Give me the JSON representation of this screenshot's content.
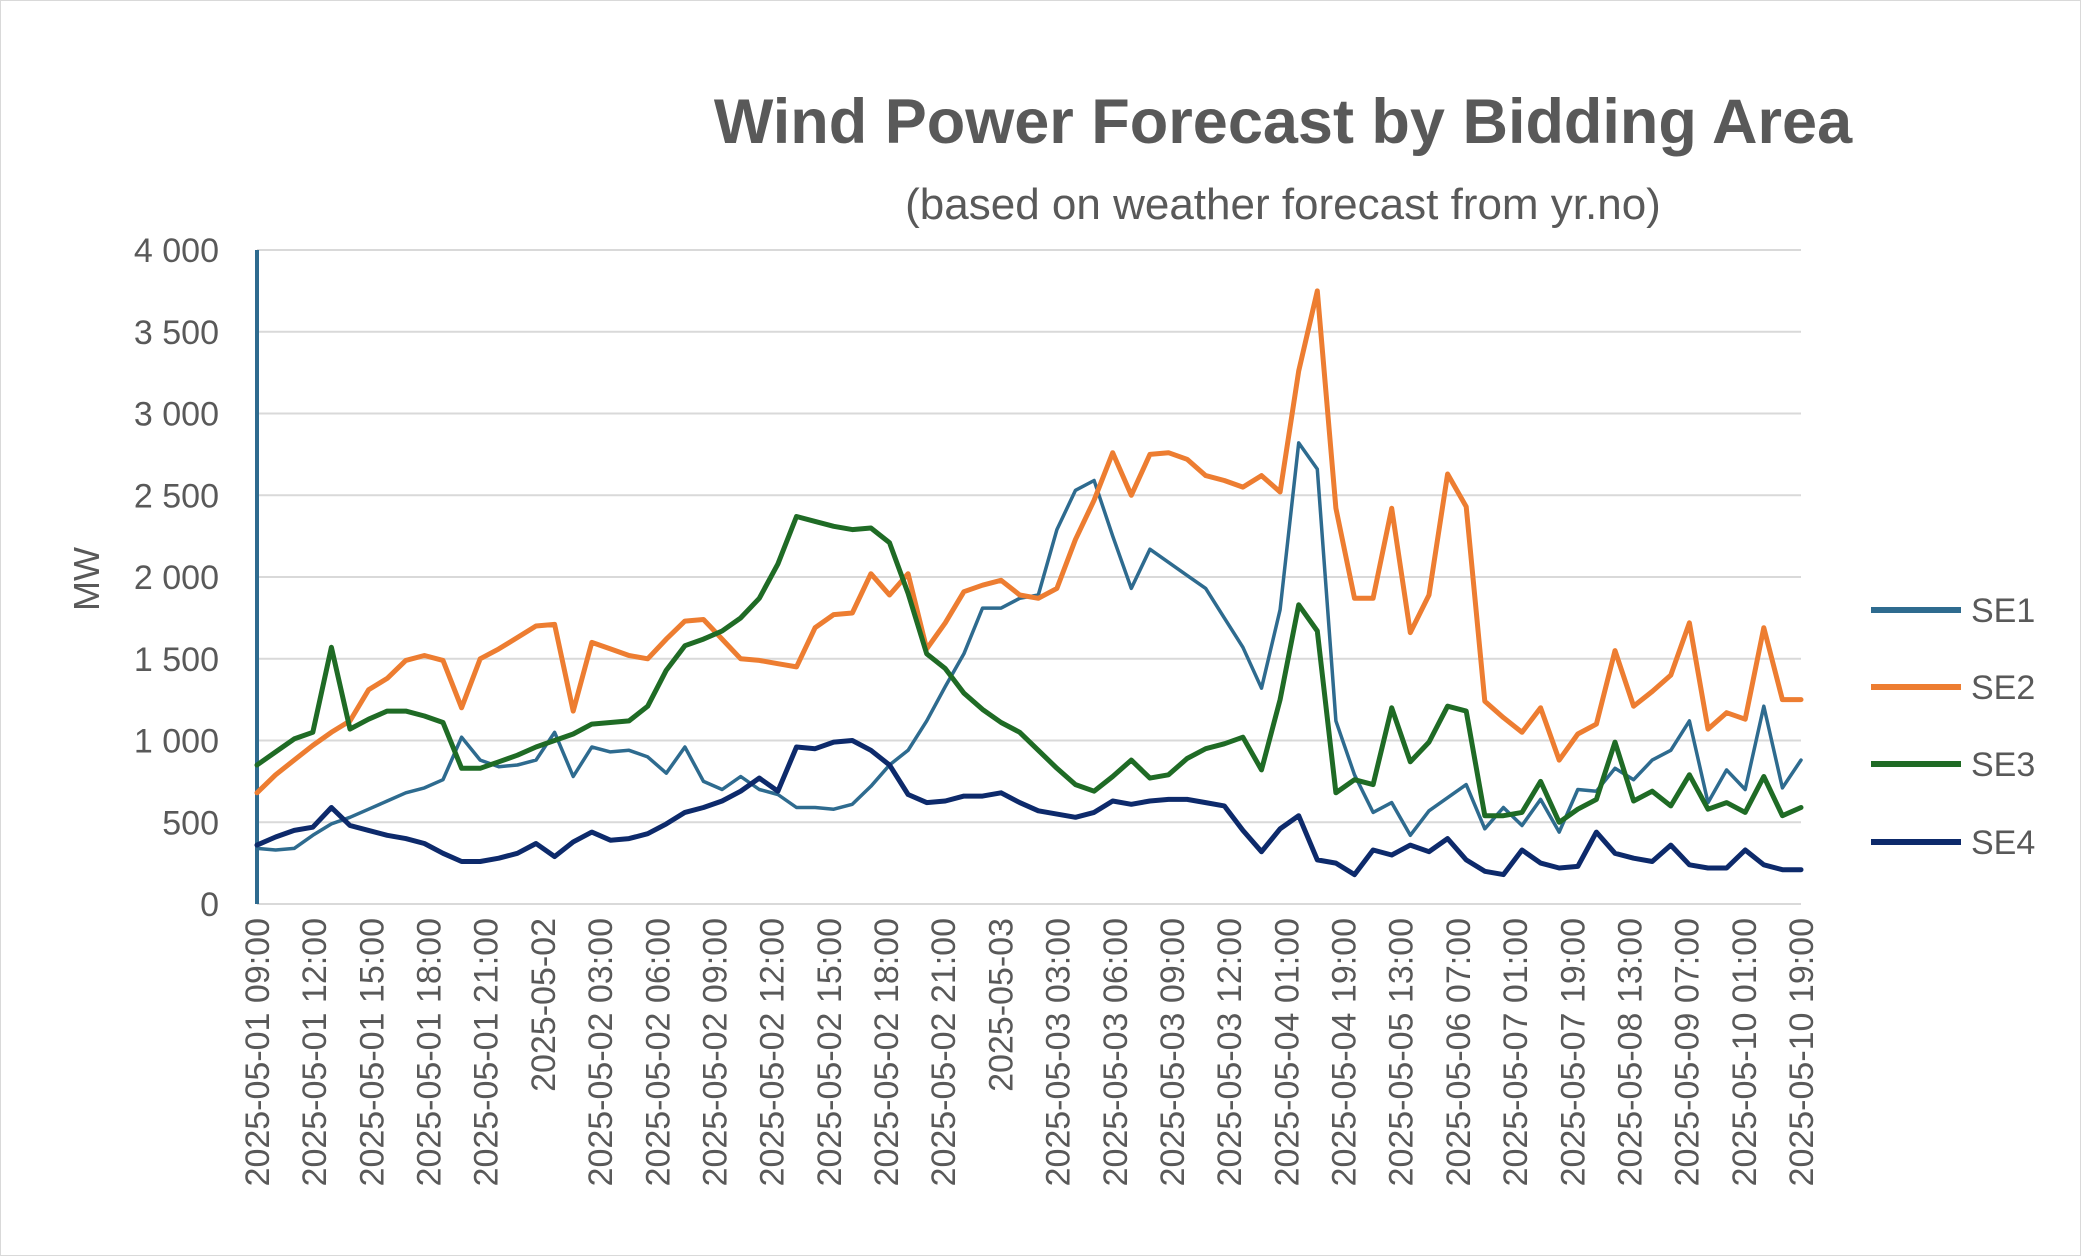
{
  "chart_data": {
    "type": "line",
    "title": "Wind Power Forecast by Bidding Area",
    "subtitle": "(based on weather forecast from yr.no)",
    "xlabel": "",
    "ylabel": "MW",
    "ylim": [
      0,
      4000
    ],
    "y_ticks": [
      0,
      500,
      1000,
      1500,
      2000,
      2500,
      3000,
      3500,
      4000
    ],
    "y_tick_labels": [
      "0",
      "500",
      "1 000",
      "1 500",
      "2 000",
      "2 500",
      "3 000",
      "3 500",
      "4 000"
    ],
    "x_tick_labels": [
      "2025-05-01 09:00",
      "2025-05-01 12:00",
      "2025-05-01 15:00",
      "2025-05-01 18:00",
      "2025-05-01 21:00",
      "2025-05-02",
      "2025-05-02 03:00",
      "2025-05-02 06:00",
      "2025-05-02 09:00",
      "2025-05-02 12:00",
      "2025-05-02 15:00",
      "2025-05-02 18:00",
      "2025-05-02 21:00",
      "2025-05-03",
      "2025-05-03 03:00",
      "2025-05-03 06:00",
      "2025-05-03 09:00",
      "2025-05-03 12:00",
      "2025-05-04 01:00",
      "2025-05-04 19:00",
      "2025-05-05 13:00",
      "2025-05-06 07:00",
      "2025-05-07 01:00",
      "2025-05-07 19:00",
      "2025-05-08 13:00",
      "2025-05-09 07:00",
      "2025-05-10 01:00",
      "2025-05-10 19:00"
    ],
    "grid": true,
    "legend_position": "right",
    "series": [
      {
        "name": "SE1",
        "color": "#2e6b8f",
        "values": [
          340,
          330,
          340,
          420,
          490,
          530,
          580,
          630,
          680,
          710,
          760,
          1020,
          880,
          840,
          850,
          880,
          1050,
          780,
          960,
          930,
          940,
          900,
          800,
          960,
          750,
          700,
          780,
          700,
          670,
          590,
          590,
          580,
          610,
          720,
          850,
          940,
          1120,
          1330,
          1530,
          1810,
          1810,
          1870,
          1890,
          2290,
          2530,
          2590,
          2250,
          1930,
          2170,
          2090,
          2010,
          1930,
          1750,
          1570,
          1320,
          1800,
          2820,
          2660,
          1120,
          790,
          560,
          620,
          420,
          570,
          650,
          730,
          460,
          590,
          480,
          640,
          440,
          700,
          690,
          830,
          760,
          880,
          940,
          1120,
          620,
          820,
          700,
          1210,
          710,
          880
        ]
      },
      {
        "name": "SE2",
        "color": "#ed7d31",
        "values": [
          680,
          790,
          880,
          970,
          1050,
          1120,
          1310,
          1380,
          1490,
          1520,
          1490,
          1200,
          1500,
          1560,
          1630,
          1700,
          1710,
          1180,
          1600,
          1560,
          1520,
          1500,
          1620,
          1730,
          1740,
          1620,
          1500,
          1490,
          1470,
          1450,
          1690,
          1770,
          1780,
          2020,
          1890,
          2020,
          1560,
          1720,
          1910,
          1950,
          1980,
          1890,
          1870,
          1930,
          2230,
          2470,
          2760,
          2500,
          2750,
          2760,
          2720,
          2620,
          2590,
          2550,
          2620,
          2520,
          3260,
          3750,
          2420,
          1870,
          1870,
          2420,
          1660,
          1890,
          2630,
          2430,
          1240,
          1140,
          1050,
          1200,
          880,
          1040,
          1100,
          1550,
          1210,
          1300,
          1400,
          1720,
          1070,
          1170,
          1130,
          1690,
          1250,
          1250
        ]
      },
      {
        "name": "SE3",
        "color": "#1f6b25",
        "values": [
          850,
          930,
          1010,
          1050,
          1570,
          1070,
          1130,
          1180,
          1180,
          1150,
          1110,
          830,
          830,
          870,
          910,
          960,
          1000,
          1040,
          1100,
          1110,
          1120,
          1210,
          1430,
          1580,
          1620,
          1670,
          1750,
          1870,
          2080,
          2370,
          2340,
          2310,
          2290,
          2300,
          2210,
          1900,
          1530,
          1440,
          1290,
          1190,
          1110,
          1050,
          940,
          830,
          730,
          690,
          780,
          880,
          770,
          790,
          890,
          950,
          980,
          1020,
          820,
          1250,
          1830,
          1670,
          680,
          760,
          730,
          1200,
          870,
          990,
          1210,
          1180,
          540,
          540,
          560,
          750,
          500,
          580,
          640,
          990,
          630,
          690,
          600,
          790,
          580,
          620,
          560,
          780,
          540,
          590
        ]
      },
      {
        "name": "SE4",
        "color": "#0d2a6b",
        "values": [
          360,
          410,
          450,
          470,
          590,
          480,
          450,
          420,
          400,
          370,
          310,
          260,
          260,
          280,
          310,
          370,
          290,
          380,
          440,
          390,
          400,
          430,
          490,
          560,
          590,
          630,
          690,
          770,
          690,
          960,
          950,
          990,
          1000,
          940,
          850,
          670,
          620,
          630,
          660,
          660,
          680,
          620,
          570,
          550,
          530,
          560,
          630,
          610,
          630,
          640,
          640,
          620,
          600,
          450,
          320,
          460,
          540,
          270,
          250,
          180,
          330,
          300,
          360,
          320,
          400,
          270,
          200,
          180,
          330,
          250,
          220,
          230,
          440,
          310,
          280,
          260,
          360,
          240,
          220,
          220,
          330,
          240,
          210,
          210
        ]
      }
    ]
  }
}
